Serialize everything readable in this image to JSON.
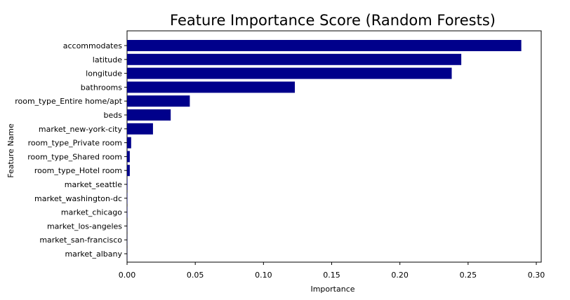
{
  "chart_data": {
    "type": "bar",
    "orientation": "horizontal",
    "title": "Feature Importance Score (Random Forests)",
    "xlabel": "Importance",
    "ylabel": "Feature Name",
    "xlim": [
      0.0,
      0.3
    ],
    "xticks": [
      "0.00",
      "0.05",
      "0.10",
      "0.15",
      "0.20",
      "0.25",
      "0.30"
    ],
    "grid": false,
    "bar_color": "#00008b",
    "categories": [
      "accommodates",
      "latitude",
      "longitude",
      "bathrooms",
      "room_type_Entire home/apt",
      "beds",
      "market_new-york-city",
      "room_type_Private room",
      "room_type_Shared room",
      "room_type_Hotel room",
      "market_seattle",
      "market_washington-dc",
      "market_chicago",
      "market_los-angeles",
      "market_san-francisco",
      "market_albany"
    ],
    "values": [
      0.289,
      0.245,
      0.238,
      0.123,
      0.046,
      0.032,
      0.019,
      0.003,
      0.002,
      0.002,
      0.0003,
      0.0002,
      0.0002,
      0.0001,
      0.0001,
      0.0001
    ]
  }
}
